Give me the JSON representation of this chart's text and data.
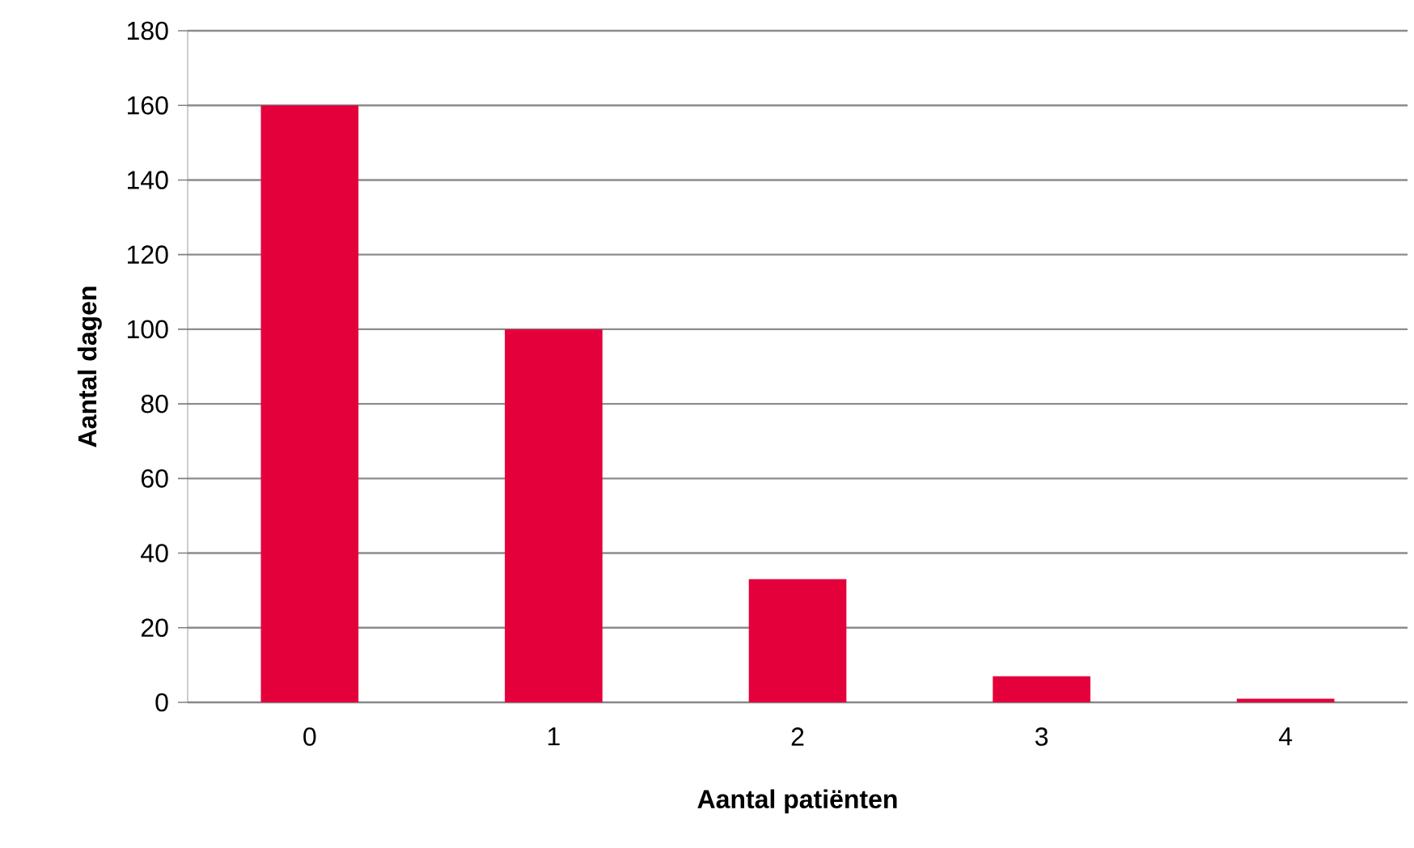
{
  "chart_data": {
    "type": "bar",
    "xlabel": "Aantal patiënten",
    "ylabel": "Aantal dagen",
    "categories": [
      "0",
      "1",
      "2",
      "3",
      "4"
    ],
    "values": [
      160,
      100,
      33,
      7,
      1
    ],
    "color": "#e4003b",
    "ylim": [
      0,
      180
    ],
    "yticks": [
      0,
      20,
      40,
      60,
      80,
      100,
      120,
      140,
      160,
      180
    ],
    "grid": "y"
  }
}
